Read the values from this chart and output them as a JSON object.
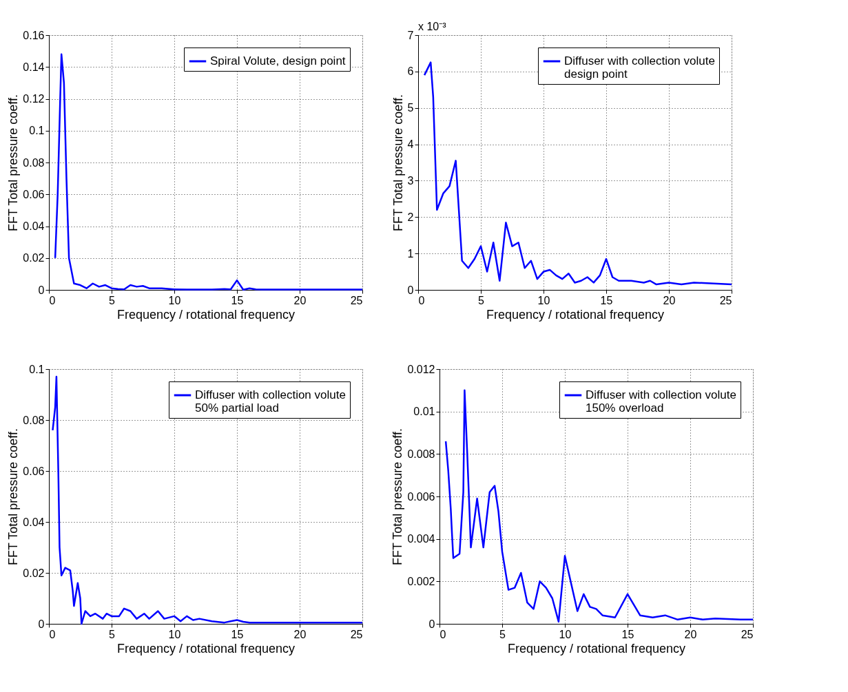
{
  "chart_data": [
    {
      "type": "line",
      "xlabel": "Frequency / rotational frequency",
      "ylabel": "FFT Total pressure coeff.",
      "xlim": [
        0,
        25
      ],
      "xticks": [
        0,
        5,
        10,
        15,
        20,
        25
      ],
      "ylim": [
        0,
        0.16
      ],
      "yticks": [
        0,
        0.02,
        0.04,
        0.06,
        0.08,
        0.1,
        0.12,
        0.14,
        0.16
      ],
      "grid": true,
      "legend": "top right",
      "series": [
        {
          "name": "Spiral Volute, design point",
          "color": "#0000ff",
          "x": [
            0.5,
            0.7,
            0.9,
            1.0,
            1.2,
            1.4,
            1.6,
            2,
            2.5,
            3,
            3.5,
            4,
            4.5,
            5,
            5.5,
            6,
            6.5,
            7,
            7.5,
            8,
            9,
            10,
            11,
            13,
            14,
            14.5,
            15,
            15.5,
            16,
            16.5,
            17,
            25
          ],
          "values": [
            0.02,
            0.06,
            0.12,
            0.148,
            0.13,
            0.07,
            0.02,
            0.004,
            0.003,
            0.001,
            0.004,
            0.002,
            0.003,
            0.001,
            0.0005,
            0.0003,
            0.003,
            0.002,
            0.0025,
            0.001,
            0.001,
            0.0003,
            0.0002,
            0.0002,
            0.0005,
            0.0003,
            0.006,
            0.0001,
            0.001,
            0.0003,
            0.0002,
            0.0002
          ]
        }
      ]
    },
    {
      "type": "line",
      "xlabel": "Frequency / rotational frequency",
      "ylabel": "FFT Total pressure coeff.",
      "annotations": [
        "x 10⁻³"
      ],
      "xlim": [
        0,
        25
      ],
      "xticks": [
        0,
        5,
        10,
        15,
        20,
        25
      ],
      "ylim": [
        0,
        7
      ],
      "yticks": [
        0,
        1,
        2,
        3,
        4,
        5,
        6,
        7
      ],
      "grid": true,
      "legend": "top right",
      "series": [
        {
          "name": "Diffuser with collection volute\ndesign point",
          "color": "#0000ff",
          "x": [
            0.5,
            1,
            1.2,
            1.5,
            2,
            2.5,
            3,
            3.5,
            4,
            4.5,
            5,
            5.5,
            6,
            6.5,
            7,
            7.5,
            8,
            8.5,
            9,
            9.5,
            10,
            10.5,
            11,
            11.5,
            12,
            12.5,
            13,
            13.5,
            14,
            14.5,
            15,
            15.5,
            16,
            17,
            18,
            18.5,
            19,
            20,
            21,
            22,
            25
          ],
          "values": [
            5.9,
            6.25,
            5.3,
            2.2,
            2.65,
            2.85,
            3.55,
            0.8,
            0.6,
            0.85,
            1.2,
            0.5,
            1.3,
            0.25,
            1.85,
            1.2,
            1.3,
            0.6,
            0.8,
            0.3,
            0.5,
            0.55,
            0.4,
            0.3,
            0.45,
            0.2,
            0.25,
            0.35,
            0.2,
            0.4,
            0.85,
            0.35,
            0.25,
            0.25,
            0.2,
            0.25,
            0.15,
            0.2,
            0.15,
            0.2,
            0.15
          ]
        }
      ]
    },
    {
      "type": "line",
      "xlabel": "Frequency / rotational frequency",
      "ylabel": "FFT Total pressure coeff.",
      "xlim": [
        0,
        25
      ],
      "xticks": [
        0,
        5,
        10,
        15,
        20,
        25
      ],
      "ylim": [
        0,
        0.1
      ],
      "yticks": [
        0,
        0.02,
        0.04,
        0.06,
        0.08,
        0.1
      ],
      "grid": true,
      "legend": "top right",
      "series": [
        {
          "name": "Diffuser with collection volute\n50% partial load",
          "color": "#0000ff",
          "x": [
            0.3,
            0.5,
            0.6,
            0.75,
            0.85,
            1.0,
            1.3,
            1.7,
            1.9,
            2.0,
            2.3,
            2.5,
            2.6,
            2.9,
            3.3,
            3.7,
            4.3,
            4.6,
            5,
            5.6,
            6,
            6.5,
            7,
            7.6,
            8,
            8.7,
            9.2,
            10,
            10.5,
            11,
            11.5,
            12,
            13,
            14,
            14.5,
            15,
            15.5,
            16,
            25
          ],
          "values": [
            0.076,
            0.085,
            0.097,
            0.06,
            0.03,
            0.019,
            0.022,
            0.021,
            0.013,
            0.007,
            0.016,
            0.01,
            0,
            0.005,
            0.003,
            0.004,
            0.002,
            0.004,
            0.003,
            0.003,
            0.006,
            0.005,
            0.002,
            0.004,
            0.002,
            0.005,
            0.002,
            0.003,
            0.001,
            0.003,
            0.0015,
            0.002,
            0.001,
            0.0005,
            0.001,
            0.0015,
            0.0008,
            0.0005,
            0.0005
          ]
        }
      ]
    },
    {
      "type": "line",
      "xlabel": "Frequency / rotational frequency",
      "ylabel": "FFT Total pressure coeff.",
      "xlim": [
        0,
        25
      ],
      "xticks": [
        0,
        5,
        10,
        15,
        20,
        25
      ],
      "ylim": [
        0,
        0.012
      ],
      "yticks": [
        0,
        0.002,
        0.004,
        0.006,
        0.008,
        0.01,
        0.012
      ],
      "grid": true,
      "legend": "top right",
      "series": [
        {
          "name": "Diffuser with collection volute\n150% overload",
          "color": "#0000ff",
          "x": [
            0.5,
            0.7,
            0.9,
            1.0,
            1.1,
            1.6,
            1.9,
            2.0,
            2.2,
            2.4,
            2.5,
            3.0,
            3.5,
            4.0,
            4.4,
            4.7,
            5.0,
            5.5,
            6.0,
            6.5,
            7.0,
            7.5,
            8.0,
            8.5,
            9.0,
            9.5,
            10.0,
            10.5,
            11.0,
            11.5,
            12.0,
            12.5,
            13.0,
            14.0,
            15.0,
            16.0,
            17.0,
            18.0,
            19.0,
            20.0,
            21.0,
            22.0,
            24.0,
            25.0
          ],
          "values": [
            0.0086,
            0.0072,
            0.0054,
            0.0042,
            0.0031,
            0.0033,
            0.0062,
            0.011,
            0.0082,
            0.0052,
            0.0036,
            0.0059,
            0.0036,
            0.0062,
            0.0065,
            0.0053,
            0.0034,
            0.0016,
            0.0017,
            0.0024,
            0.001,
            0.0007,
            0.002,
            0.0017,
            0.0012,
            0.0001,
            0.0032,
            0.0019,
            0.0006,
            0.0014,
            0.0008,
            0.0007,
            0.0004,
            0.0003,
            0.0014,
            0.0004,
            0.0003,
            0.0004,
            0.0002,
            0.0003,
            0.0002,
            0.00025,
            0.0002,
            0.0002
          ]
        }
      ]
    }
  ]
}
